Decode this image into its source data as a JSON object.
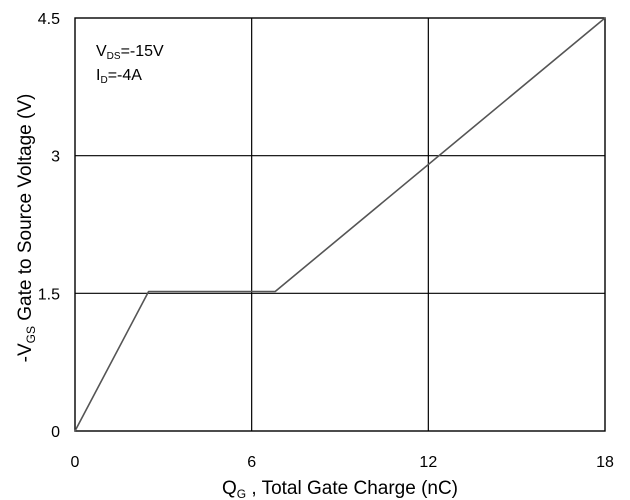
{
  "chart_data": {
    "type": "line",
    "title": "",
    "xlabel": {
      "main": "Q",
      "sub": "G",
      "rest": " , Total Gate Charge (nC)"
    },
    "ylabel": {
      "prefix": "-V",
      "sub": "GS",
      "rest": "  Gate to Source Voltage (V)"
    },
    "xlim": [
      0,
      18
    ],
    "ylim": [
      0,
      4.5
    ],
    "xticks": [
      0,
      6,
      12,
      18
    ],
    "yticks": [
      0,
      1.5,
      3,
      4.5
    ],
    "xtick_labels": [
      "0",
      "6",
      "12",
      "18"
    ],
    "ytick_labels": [
      "0",
      "1.5",
      "3",
      "4.5"
    ],
    "grid": true,
    "annotations": [
      {
        "main": "V",
        "sub": "DS",
        "rest": "=-15V"
      },
      {
        "main": "I",
        "sub": "D",
        "rest": "=-4A"
      }
    ],
    "series": [
      {
        "x": [
          0,
          2.5,
          6.8,
          18
        ],
        "y": [
          0,
          1.52,
          1.52,
          4.5
        ]
      }
    ]
  }
}
